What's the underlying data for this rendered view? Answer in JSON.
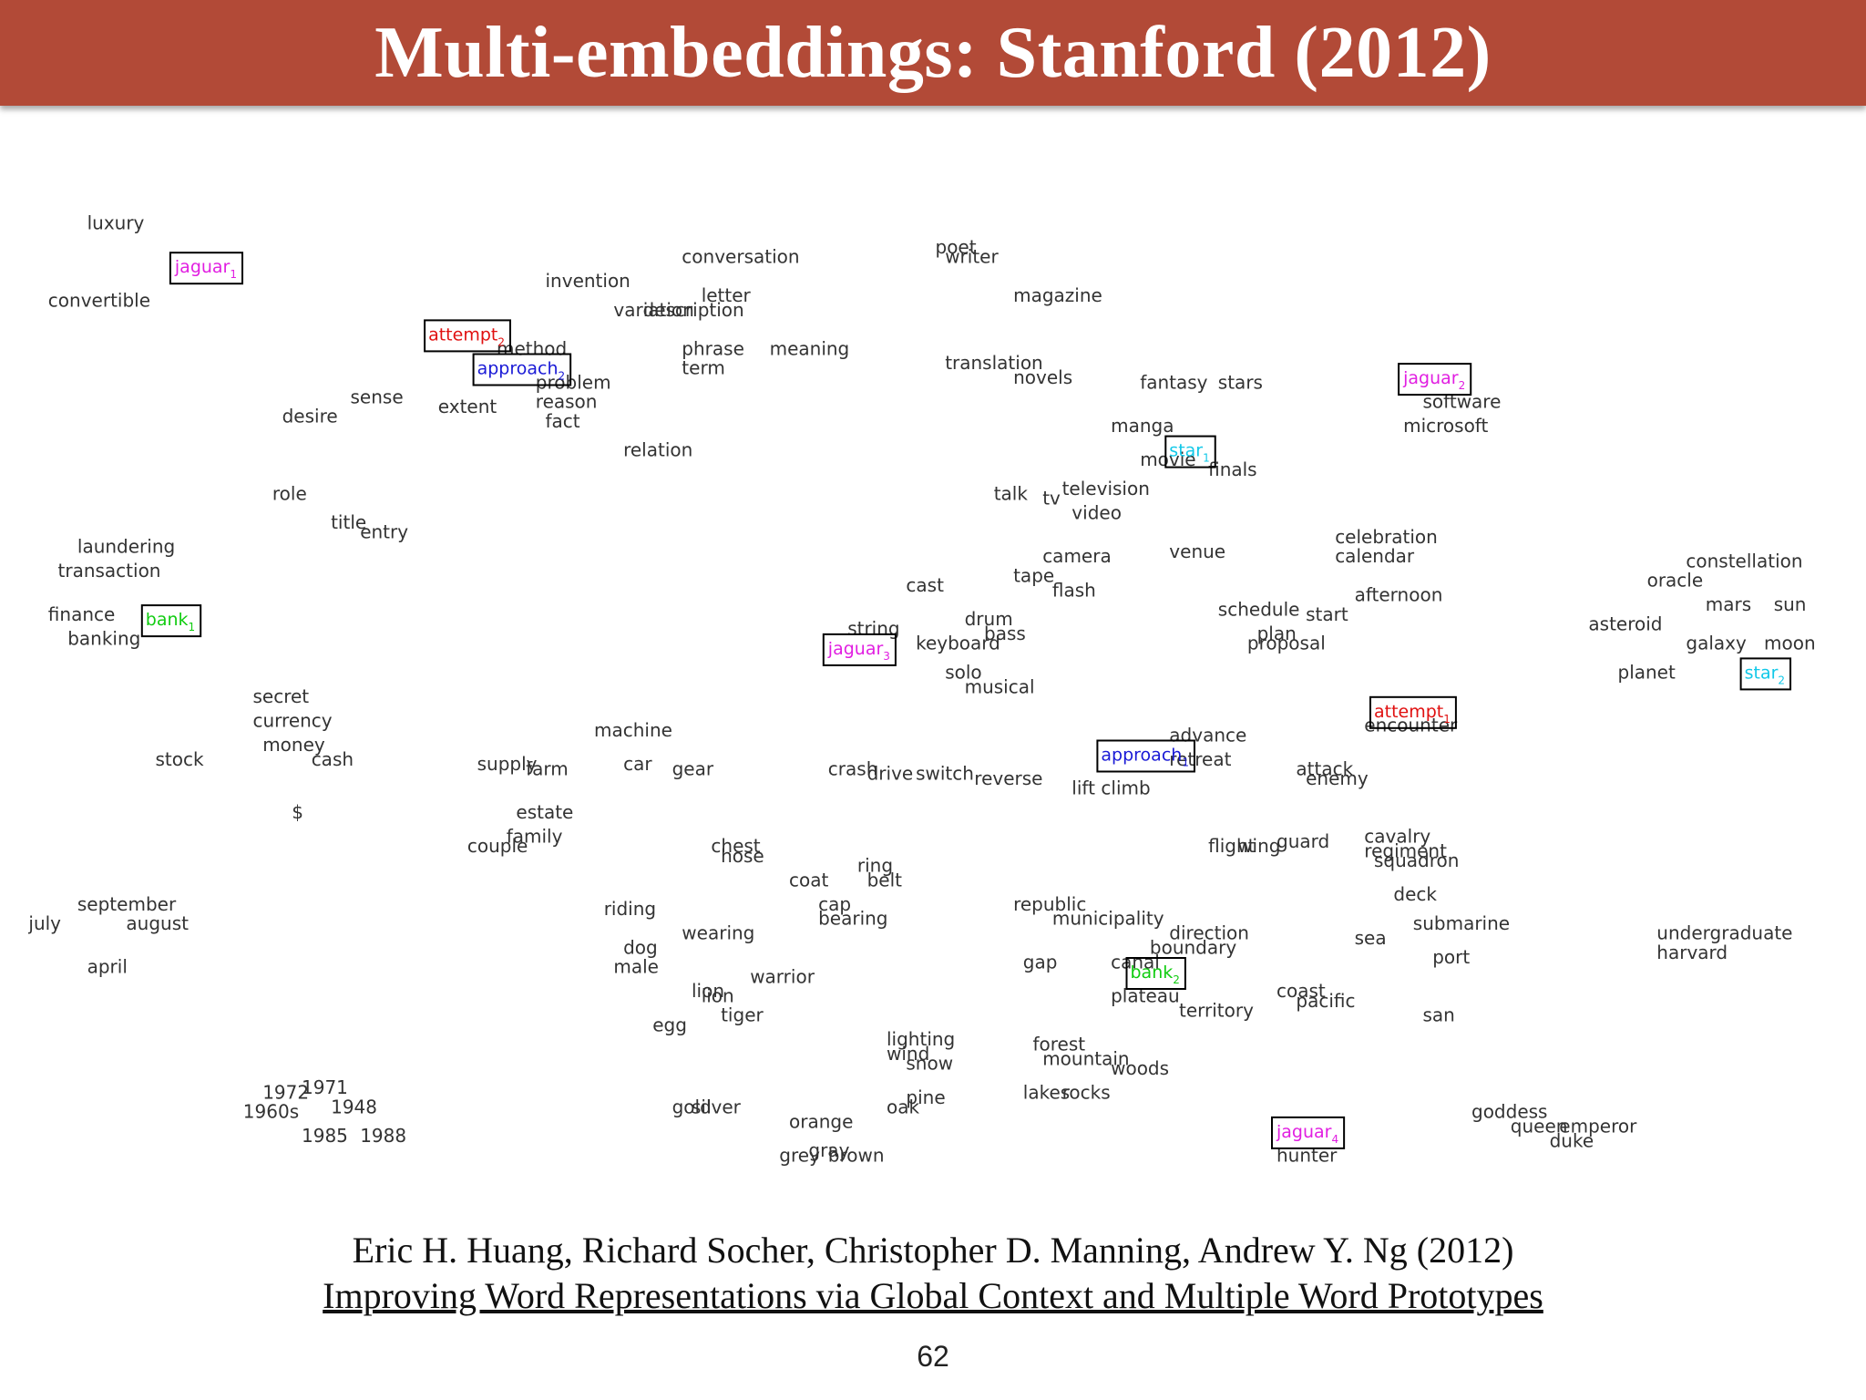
{
  "slide": {
    "title": "Multi-embeddings: Stanford (2012)",
    "authors": "Eric H. Huang, Richard Socher, Christopher D. Manning, Andrew Y. Ng (2012)",
    "paper_title": "Improving Word Representations via Global Context and Multiple Word Prototypes",
    "page_number": "62",
    "colors": {
      "title_bar": "#b24a37",
      "jaguar": "#e11ee1",
      "attempt": "#e01010",
      "approach": "#1a1ad6",
      "bank": "#11cc11",
      "star": "#11c8e8"
    }
  },
  "chart_data": {
    "type": "scatter",
    "title": "",
    "xlabel": "",
    "ylabel": "",
    "grid": false,
    "axes_visible": false,
    "words": [
      {
        "word": "luxury",
        "x": 0.8,
        "y": 17.5
      },
      {
        "word": "convertible",
        "x": 0.4,
        "y": 15.9
      },
      {
        "word": "invention",
        "x": 5.5,
        "y": 16.3
      },
      {
        "word": "conversation",
        "x": 6.9,
        "y": 16.8
      },
      {
        "word": "letter",
        "x": 7.1,
        "y": 16.0
      },
      {
        "word": "variation",
        "x": 6.2,
        "y": 15.7
      },
      {
        "word": "description",
        "x": 6.5,
        "y": 15.7
      },
      {
        "word": "phrase",
        "x": 6.9,
        "y": 14.9
      },
      {
        "word": "term",
        "x": 6.9,
        "y": 14.5
      },
      {
        "word": "meaning",
        "x": 7.8,
        "y": 14.9
      },
      {
        "word": "method",
        "x": 5.0,
        "y": 14.9
      },
      {
        "word": "problem",
        "x": 5.4,
        "y": 14.2
      },
      {
        "word": "reason",
        "x": 5.4,
        "y": 13.8
      },
      {
        "word": "fact",
        "x": 5.5,
        "y": 13.4
      },
      {
        "word": "extent",
        "x": 4.4,
        "y": 13.7
      },
      {
        "word": "sense",
        "x": 3.5,
        "y": 13.9
      },
      {
        "word": "desire",
        "x": 2.8,
        "y": 13.5
      },
      {
        "word": "relation",
        "x": 6.3,
        "y": 12.8
      },
      {
        "word": "poet",
        "x": 9.5,
        "y": 17.0
      },
      {
        "word": "writer",
        "x": 9.6,
        "y": 16.8
      },
      {
        "word": "magazine",
        "x": 10.3,
        "y": 16.0
      },
      {
        "word": "translation",
        "x": 9.6,
        "y": 14.6
      },
      {
        "word": "novels",
        "x": 10.3,
        "y": 14.3
      },
      {
        "word": "fantasy",
        "x": 11.6,
        "y": 14.2
      },
      {
        "word": "stars",
        "x": 12.4,
        "y": 14.2
      },
      {
        "word": "software",
        "x": 14.5,
        "y": 13.8
      },
      {
        "word": "microsoft",
        "x": 14.3,
        "y": 13.3
      },
      {
        "word": "manga",
        "x": 11.3,
        "y": 13.3
      },
      {
        "word": "movie",
        "x": 11.6,
        "y": 12.6
      },
      {
        "word": "finals",
        "x": 12.3,
        "y": 12.4
      },
      {
        "word": "talk",
        "x": 10.1,
        "y": 11.9
      },
      {
        "word": "tv",
        "x": 10.6,
        "y": 11.8
      },
      {
        "word": "television",
        "x": 10.8,
        "y": 12.0
      },
      {
        "word": "video",
        "x": 10.9,
        "y": 11.5
      },
      {
        "word": "role",
        "x": 2.7,
        "y": 11.9
      },
      {
        "word": "title",
        "x": 3.3,
        "y": 11.3
      },
      {
        "word": "entry",
        "x": 3.6,
        "y": 11.1
      },
      {
        "word": "laundering",
        "x": 0.7,
        "y": 10.8
      },
      {
        "word": "transaction",
        "x": 0.5,
        "y": 10.3
      },
      {
        "word": "celebration",
        "x": 13.6,
        "y": 11.0
      },
      {
        "word": "calendar",
        "x": 13.6,
        "y": 10.6
      },
      {
        "word": "venue",
        "x": 11.9,
        "y": 10.7
      },
      {
        "word": "camera",
        "x": 10.6,
        "y": 10.6
      },
      {
        "word": "tape",
        "x": 10.3,
        "y": 10.2
      },
      {
        "word": "flash",
        "x": 10.7,
        "y": 9.9
      },
      {
        "word": "cast",
        "x": 9.2,
        "y": 10.0
      },
      {
        "word": "constellation",
        "x": 17.2,
        "y": 10.5
      },
      {
        "word": "oracle",
        "x": 16.8,
        "y": 10.1
      },
      {
        "word": "mars",
        "x": 17.4,
        "y": 9.6
      },
      {
        "word": "sun",
        "x": 18.1,
        "y": 9.6
      },
      {
        "word": "asteroid",
        "x": 16.2,
        "y": 9.2
      },
      {
        "word": "moon",
        "x": 18.0,
        "y": 8.8
      },
      {
        "word": "galaxy",
        "x": 17.2,
        "y": 8.8
      },
      {
        "word": "planet",
        "x": 16.5,
        "y": 8.2
      },
      {
        "word": "afternoon",
        "x": 13.8,
        "y": 9.8
      },
      {
        "word": "schedule",
        "x": 12.4,
        "y": 9.5
      },
      {
        "word": "start",
        "x": 13.3,
        "y": 9.4
      },
      {
        "word": "plan",
        "x": 12.8,
        "y": 9.0
      },
      {
        "word": "proposal",
        "x": 12.7,
        "y": 8.8
      },
      {
        "word": "finance",
        "x": 0.4,
        "y": 9.4
      },
      {
        "word": "banking",
        "x": 0.6,
        "y": 8.9
      },
      {
        "word": "string",
        "x": 8.6,
        "y": 9.1
      },
      {
        "word": "keyboard",
        "x": 9.3,
        "y": 8.8
      },
      {
        "word": "drum",
        "x": 9.8,
        "y": 9.3
      },
      {
        "word": "bass",
        "x": 10.0,
        "y": 9.0
      },
      {
        "word": "solo",
        "x": 9.6,
        "y": 8.2
      },
      {
        "word": "musical",
        "x": 9.8,
        "y": 7.9
      },
      {
        "word": "secret",
        "x": 2.5,
        "y": 7.7
      },
      {
        "word": "currency",
        "x": 2.5,
        "y": 7.2
      },
      {
        "word": "money",
        "x": 2.6,
        "y": 6.7
      },
      {
        "word": "cash",
        "x": 3.1,
        "y": 6.4
      },
      {
        "word": "stock",
        "x": 1.5,
        "y": 6.4
      },
      {
        "word": "machine",
        "x": 6.0,
        "y": 7.0
      },
      {
        "word": "encounter",
        "x": 13.9,
        "y": 7.1
      },
      {
        "word": "advance",
        "x": 11.9,
        "y": 6.9
      },
      {
        "word": "retreat",
        "x": 11.9,
        "y": 6.4
      },
      {
        "word": "supply",
        "x": 4.8,
        "y": 6.3
      },
      {
        "word": "farm",
        "x": 5.3,
        "y": 6.2
      },
      {
        "word": "car",
        "x": 6.3,
        "y": 6.3
      },
      {
        "word": "gear",
        "x": 6.8,
        "y": 6.2
      },
      {
        "word": "crash",
        "x": 8.4,
        "y": 6.2
      },
      {
        "word": "drive",
        "x": 8.8,
        "y": 6.1
      },
      {
        "word": "switch",
        "x": 9.3,
        "y": 6.1
      },
      {
        "word": "reverse",
        "x": 9.9,
        "y": 6.0
      },
      {
        "word": "lift",
        "x": 10.9,
        "y": 5.8
      },
      {
        "word": "climb",
        "x": 11.2,
        "y": 5.8
      },
      {
        "word": "attack",
        "x": 13.2,
        "y": 6.2
      },
      {
        "word": "enemy",
        "x": 13.3,
        "y": 6.0
      },
      {
        "word": "$",
        "x": 2.9,
        "y": 5.3
      },
      {
        "word": "estate",
        "x": 5.2,
        "y": 5.3
      },
      {
        "word": "couple",
        "x": 4.7,
        "y": 4.6
      },
      {
        "word": "family",
        "x": 5.1,
        "y": 4.8
      },
      {
        "word": "chest",
        "x": 7.2,
        "y": 4.6
      },
      {
        "word": "hose",
        "x": 7.3,
        "y": 4.4
      },
      {
        "word": "flight",
        "x": 12.3,
        "y": 4.6
      },
      {
        "word": "wing",
        "x": 12.6,
        "y": 4.6
      },
      {
        "word": "guard",
        "x": 13.0,
        "y": 4.7
      },
      {
        "word": "cavalry",
        "x": 13.9,
        "y": 4.8
      },
      {
        "word": "regiment",
        "x": 13.9,
        "y": 4.5
      },
      {
        "word": "squadron",
        "x": 14.0,
        "y": 4.3
      },
      {
        "word": "coat",
        "x": 8.0,
        "y": 3.9
      },
      {
        "word": "ring",
        "x": 8.7,
        "y": 4.2
      },
      {
        "word": "belt",
        "x": 8.8,
        "y": 3.9
      },
      {
        "word": "deck",
        "x": 14.2,
        "y": 3.6
      },
      {
        "word": "september",
        "x": 0.7,
        "y": 3.4
      },
      {
        "word": "july",
        "x": 0.2,
        "y": 3.0
      },
      {
        "word": "august",
        "x": 1.2,
        "y": 3.0
      },
      {
        "word": "riding",
        "x": 6.1,
        "y": 3.3
      },
      {
        "word": "cap",
        "x": 8.3,
        "y": 3.4
      },
      {
        "word": "bearing",
        "x": 8.3,
        "y": 3.1
      },
      {
        "word": "wearing",
        "x": 6.9,
        "y": 2.8
      },
      {
        "word": "republic",
        "x": 10.3,
        "y": 3.4
      },
      {
        "word": "municipality",
        "x": 10.7,
        "y": 3.1
      },
      {
        "word": "direction",
        "x": 11.9,
        "y": 2.8
      },
      {
        "word": "submarine",
        "x": 14.4,
        "y": 3.0
      },
      {
        "word": "sea",
        "x": 13.8,
        "y": 2.7
      },
      {
        "word": "undergraduate",
        "x": 16.9,
        "y": 2.8
      },
      {
        "word": "harvard",
        "x": 16.9,
        "y": 2.4
      },
      {
        "word": "dog",
        "x": 6.3,
        "y": 2.5
      },
      {
        "word": "male",
        "x": 6.2,
        "y": 2.1
      },
      {
        "word": "boundary",
        "x": 11.7,
        "y": 2.5
      },
      {
        "word": "gap",
        "x": 10.4,
        "y": 2.2
      },
      {
        "word": "canal",
        "x": 11.3,
        "y": 2.2
      },
      {
        "word": "port",
        "x": 14.6,
        "y": 2.3
      },
      {
        "word": "april",
        "x": 0.8,
        "y": 2.1
      },
      {
        "word": "warrior",
        "x": 7.6,
        "y": 1.9
      },
      {
        "word": "lion",
        "x": 7.0,
        "y": 1.6
      },
      {
        "word": "lion",
        "x": 7.1,
        "y": 1.5
      },
      {
        "word": "plateau",
        "x": 11.3,
        "y": 1.5
      },
      {
        "word": "coast",
        "x": 13.0,
        "y": 1.6
      },
      {
        "word": "pacific",
        "x": 13.2,
        "y": 1.4
      },
      {
        "word": "tiger",
        "x": 7.3,
        "y": 1.1
      },
      {
        "word": "territory",
        "x": 12.0,
        "y": 1.2
      },
      {
        "word": "san",
        "x": 14.5,
        "y": 1.1
      },
      {
        "word": "egg",
        "x": 6.6,
        "y": 0.9
      },
      {
        "word": "lighting",
        "x": 9.0,
        "y": 0.6
      },
      {
        "word": "wind",
        "x": 9.0,
        "y": 0.3
      },
      {
        "word": "snow",
        "x": 9.2,
        "y": 0.1
      },
      {
        "word": "forest",
        "x": 10.5,
        "y": 0.5
      },
      {
        "word": "mountain",
        "x": 10.6,
        "y": 0.2
      },
      {
        "word": "woods",
        "x": 11.3,
        "y": 0.0
      },
      {
        "word": "1972",
        "x": 2.6,
        "y": -0.5
      },
      {
        "word": "1971",
        "x": 3.0,
        "y": -0.4
      },
      {
        "word": "1960s",
        "x": 2.4,
        "y": -0.9
      },
      {
        "word": "1948",
        "x": 3.3,
        "y": -0.8
      },
      {
        "word": "lakes",
        "x": 10.4,
        "y": -0.5
      },
      {
        "word": "rocks",
        "x": 10.8,
        "y": -0.5
      },
      {
        "word": "gold",
        "x": 6.8,
        "y": -0.8
      },
      {
        "word": "silver",
        "x": 7.0,
        "y": -0.8
      },
      {
        "word": "oak",
        "x": 9.0,
        "y": -0.8
      },
      {
        "word": "pine",
        "x": 9.2,
        "y": -0.6
      },
      {
        "word": "goddess",
        "x": 15.0,
        "y": -0.9
      },
      {
        "word": "orange",
        "x": 8.0,
        "y": -1.1
      },
      {
        "word": "queen",
        "x": 15.4,
        "y": -1.2
      },
      {
        "word": "emperor",
        "x": 15.9,
        "y": -1.2
      },
      {
        "word": "duke",
        "x": 15.8,
        "y": -1.5
      },
      {
        "word": "1985",
        "x": 3.0,
        "y": -1.4
      },
      {
        "word": "1988",
        "x": 3.6,
        "y": -1.4
      },
      {
        "word": "grey",
        "x": 7.9,
        "y": -1.8
      },
      {
        "word": "gray",
        "x": 8.2,
        "y": -1.7
      },
      {
        "word": "brown",
        "x": 8.4,
        "y": -1.8
      },
      {
        "word": "hunter",
        "x": 13.0,
        "y": -1.8
      }
    ],
    "senses": [
      {
        "word": "jaguar",
        "sense": "1",
        "color": "#e11ee1",
        "x": 1.7,
        "y": 16.6
      },
      {
        "word": "attempt",
        "sense": "2",
        "color": "#e01010",
        "x": 4.3,
        "y": 15.2
      },
      {
        "word": "approach",
        "sense": "2",
        "color": "#1a1ad6",
        "x": 4.8,
        "y": 14.5
      },
      {
        "word": "jaguar",
        "sense": "2",
        "color": "#e11ee1",
        "x": 14.3,
        "y": 14.3
      },
      {
        "word": "star",
        "sense": "1",
        "color": "#11c8e8",
        "x": 11.9,
        "y": 12.8
      },
      {
        "word": "bank",
        "sense": "1",
        "color": "#11cc11",
        "x": 1.4,
        "y": 9.3
      },
      {
        "word": "jaguar",
        "sense": "3",
        "color": "#e11ee1",
        "x": 8.4,
        "y": 8.7
      },
      {
        "word": "star",
        "sense": "2",
        "color": "#11c8e8",
        "x": 17.8,
        "y": 8.2
      },
      {
        "word": "attempt",
        "sense": "1",
        "color": "#e01010",
        "x": 14.0,
        "y": 7.4
      },
      {
        "word": "approach",
        "sense": "1",
        "color": "#1a1ad6",
        "x": 11.2,
        "y": 6.5
      },
      {
        "word": "bank",
        "sense": "2",
        "color": "#11cc11",
        "x": 11.5,
        "y": 2.0
      },
      {
        "word": "jaguar",
        "sense": "4",
        "color": "#e11ee1",
        "x": 13.0,
        "y": -1.3
      }
    ]
  }
}
